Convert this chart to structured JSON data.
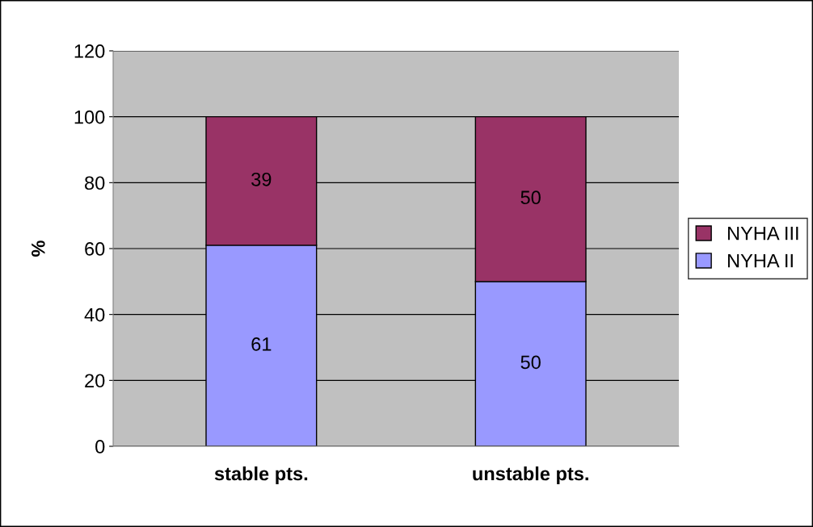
{
  "chart_data": {
    "type": "bar",
    "stacked": true,
    "ylabel": "%",
    "categories": [
      "stable pts.",
      "unstable pts."
    ],
    "series": [
      {
        "name": "NYHA II",
        "color": "#9999ff",
        "values": [
          61,
          50
        ]
      },
      {
        "name": "NYHA III",
        "color": "#993366",
        "values": [
          39,
          50
        ]
      }
    ],
    "ylim": [
      0,
      120
    ],
    "yticks": [
      0,
      20,
      40,
      60,
      80,
      100,
      120
    ],
    "grid": "y",
    "legend": "right",
    "data_labels": true
  }
}
